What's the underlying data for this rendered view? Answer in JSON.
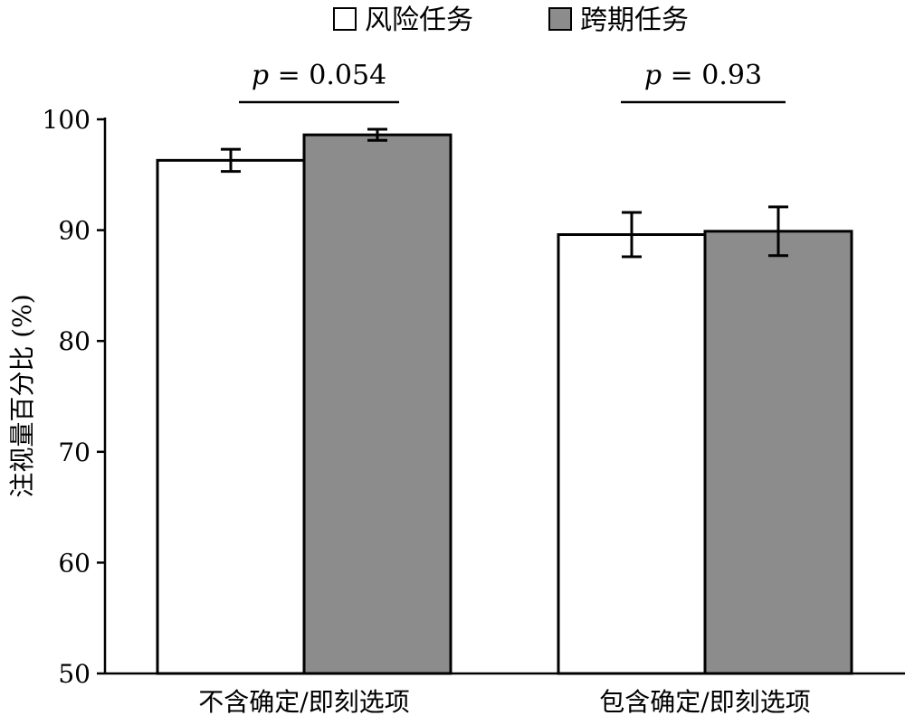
{
  "chart_data": {
    "type": "bar",
    "categories": [
      "不含确定/即刻选项",
      "包含确定/即刻选项"
    ],
    "series": [
      {
        "name": "风险任务",
        "values": [
          96.3,
          89.6
        ],
        "errors": [
          1.0,
          2.0
        ],
        "color": "#ffffff"
      },
      {
        "name": "跨期任务",
        "values": [
          98.6,
          89.9
        ],
        "errors": [
          0.5,
          2.2
        ],
        "color": "#8c8c8c"
      }
    ],
    "ylabel": "注视量百分比 (%)",
    "ylim": [
      50,
      100
    ],
    "yticks": [
      50,
      60,
      70,
      80,
      90,
      100
    ],
    "legend_position": "top-center",
    "grid": false,
    "annotations": [
      {
        "category": 0,
        "label_italic": "p",
        "label_rest": " = 0.054"
      },
      {
        "category": 1,
        "label_italic": "p",
        "label_rest": " = 0.93"
      }
    ]
  }
}
